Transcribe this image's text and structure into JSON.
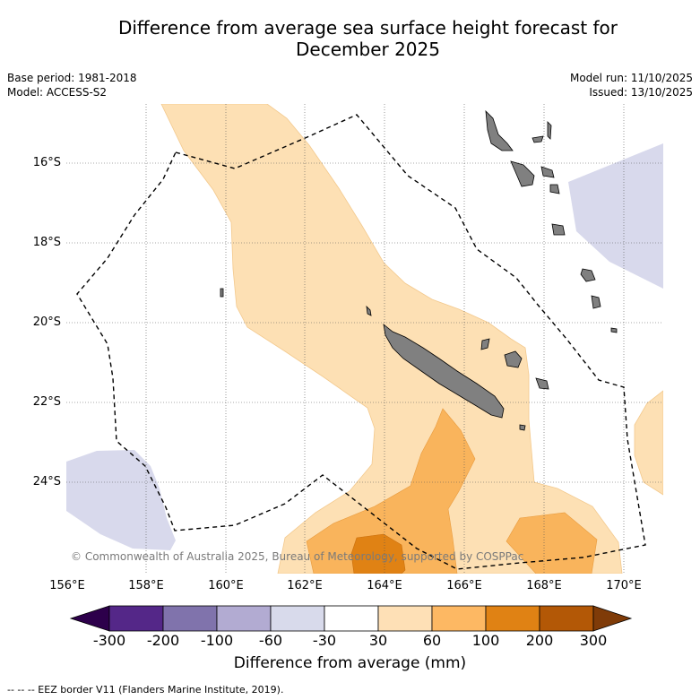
{
  "title_line1": "Difference from average sea surface height forecast for",
  "title_line2": "December 2025",
  "base_period": "Base period: 1981-2018",
  "model": "Model: ACCESS-S2",
  "model_run": "Model run: 11/10/2025",
  "issued": "Issued: 13/10/2025",
  "map": {
    "lat_labels": [
      "16°S",
      "18°S",
      "20°S",
      "22°S",
      "24°S"
    ],
    "lon_labels": [
      "156°E",
      "158°E",
      "160°E",
      "162°E",
      "164°E",
      "166°E",
      "168°E",
      "170°E"
    ],
    "copyright": "© Commonwealth of Australia 2025, Bureau of Meteorology, supported by COSPPac",
    "colors": {
      "fill_30_60": "#fde0b4",
      "fill_60_100": "#f9b45c",
      "fill_100_200": "#e08214",
      "fill_neg30_neg60": "#d8d9ec",
      "land": "#808080"
    }
  },
  "colorbar": {
    "ticks": [
      "-300",
      "-200",
      "-100",
      "-60",
      "-30",
      "30",
      "60",
      "100",
      "200",
      "300"
    ],
    "colors": [
      "#2d004b",
      "#542788",
      "#8073ac",
      "#b2abd2",
      "#d8daeb",
      "#ffffff",
      "#fee0b6",
      "#fdb863",
      "#e08214",
      "#b35806",
      "#7f3b08"
    ],
    "label": "Difference from average (mm)"
  },
  "footer": "--  --  -- EEZ border V11 (Flanders Marine Institute, 2019)."
}
